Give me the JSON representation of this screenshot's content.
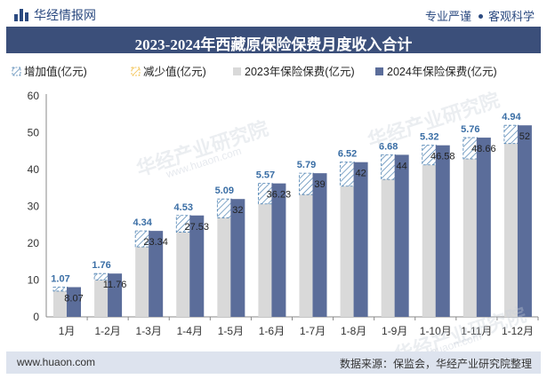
{
  "header": {
    "brand": "华经情报网",
    "tagline_left": "专业严谨",
    "tagline_right": "客观科学",
    "brand_icon": "bar-chart-logo-icon"
  },
  "title": "2023-2024年西藏原保险保费月度收入合计",
  "footer": {
    "website": "www.huaon.com",
    "source": "数据来源：保监会，华经产业研究院整理"
  },
  "watermarks": {
    "text": "华经产业研究院",
    "url": "www.huaon.com"
  },
  "colors": {
    "title_bg": "#3b4f7a",
    "footer_bg": "#dde3ee",
    "bar_2023": "#d9d9d9",
    "bar_2024": "#5b6d9a",
    "increase": "#4a7fb0",
    "decrease": "#f0b429",
    "label_increase": "#3a6ea5"
  },
  "chart_data": {
    "type": "bar",
    "categories": [
      "1月",
      "1-2月",
      "1-3月",
      "1-4月",
      "1-5月",
      "1-6月",
      "1-7月",
      "1-8月",
      "1-9月",
      "1-10月",
      "1-11月",
      "1-12月"
    ],
    "series": [
      {
        "name": "增加值(亿元)",
        "values": [
          1.07,
          1.76,
          4.34,
          4.53,
          5.09,
          5.57,
          5.79,
          6.52,
          6.68,
          5.32,
          5.76,
          4.94
        ]
      },
      {
        "name": "减少值(亿元)",
        "values": [
          0,
          0,
          0,
          0,
          0,
          0,
          0,
          0,
          0,
          0,
          0,
          0
        ]
      },
      {
        "name": "2023年保险保费(亿元)",
        "values": [
          7.0,
          10.0,
          19.0,
          23.0,
          26.91,
          30.66,
          33.21,
          35.48,
          37.32,
          41.26,
          42.9,
          47.06
        ]
      },
      {
        "name": "2024年保险保费(亿元)",
        "values": [
          8.07,
          11.76,
          23.34,
          27.53,
          32,
          36.23,
          39,
          42,
          44,
          46.58,
          48.66,
          52
        ]
      }
    ],
    "data_labels_2024": [
      "8.07",
      "11.76",
      "23.34",
      "27.53",
      "32",
      "36.23",
      "39",
      "42",
      "44",
      "46.58",
      "48.66",
      "52"
    ],
    "data_labels_increase": [
      "1.07",
      "1.76",
      "4.34",
      "4.53",
      "5.09",
      "5.57",
      "5.79",
      "6.52",
      "6.68",
      "5.32",
      "5.76",
      "4.94"
    ],
    "yticks": [
      "0",
      "10",
      "20",
      "30",
      "40",
      "50",
      "60"
    ],
    "ylim": [
      0,
      60
    ],
    "legend_position": "top-left",
    "grid": false
  }
}
